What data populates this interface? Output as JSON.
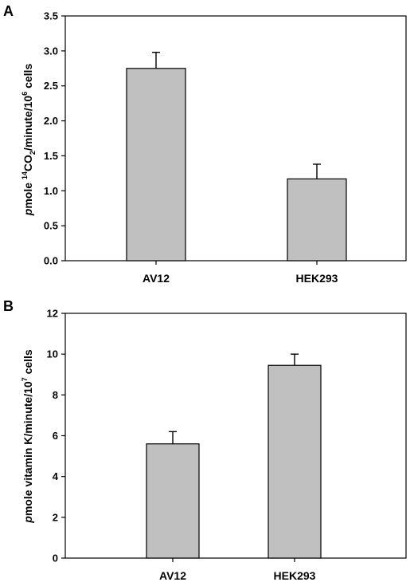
{
  "chart_data": [
    {
      "panel": "A",
      "type": "bar",
      "categories": [
        "AV12",
        "HEK293"
      ],
      "values": [
        2.75,
        1.17
      ],
      "error_upper": [
        2.98,
        1.38
      ],
      "ylim": [
        0,
        3.5
      ],
      "yticks": [
        "0.0",
        "0.5",
        "1.0",
        "1.5",
        "2.0",
        "2.5",
        "3.0",
        "3.5"
      ],
      "ylabel_parts": {
        "italic": "p",
        "text1": "mole ",
        "sup1": "14",
        "text2": "CO",
        "sub1": "2",
        "text3": "/minute/10",
        "sup2": "6",
        "text4": " cells"
      },
      "grid": false,
      "bar_color": "#c0c0c0"
    },
    {
      "panel": "B",
      "type": "bar",
      "categories": [
        "AV12",
        "HEK293"
      ],
      "values": [
        5.6,
        9.45
      ],
      "error_upper": [
        6.2,
        10.0
      ],
      "ylim": [
        0,
        12
      ],
      "yticks": [
        "0",
        "2",
        "4",
        "6",
        "8",
        "10",
        "12"
      ],
      "ylabel_parts": {
        "italic": "p",
        "text1": "mole vitamin K/minute/10",
        "sup1": "7",
        "text2": " cells"
      },
      "grid": false,
      "bar_color": "#c0c0c0"
    }
  ]
}
